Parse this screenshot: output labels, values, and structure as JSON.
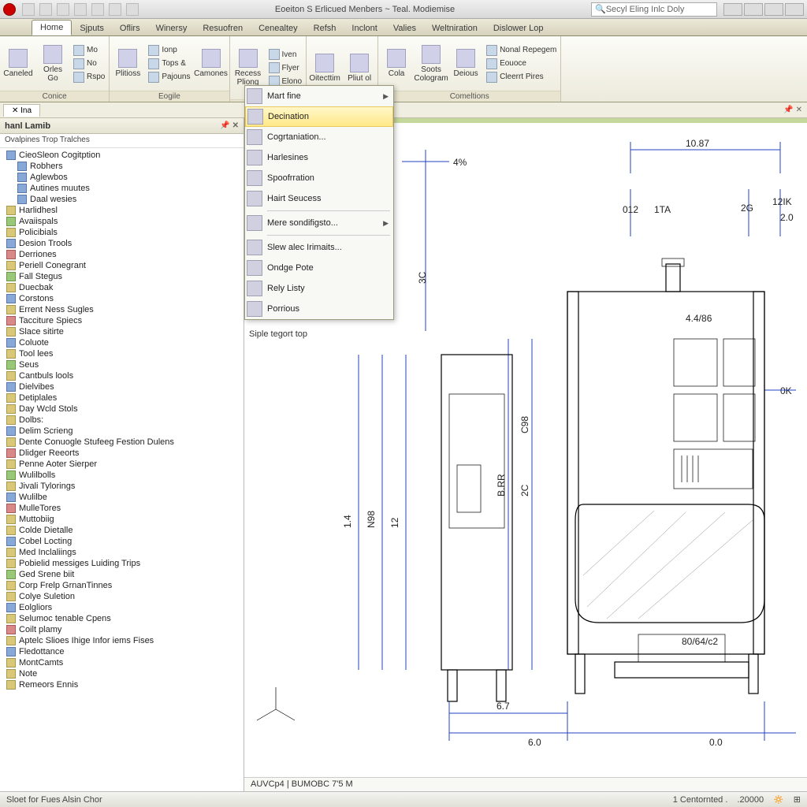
{
  "titlebar": {
    "doc_title": "Eoeiton S Erlicued Menbers ~ Teal. Modiemise",
    "search_placeholder": "Secyl Eling Inlc Doly"
  },
  "ribbon_tabs": [
    "Home",
    "Sjputs",
    "Oflirs",
    "Winersy",
    "Resuofren",
    "Cenealtey",
    "Refsh",
    "Inclont",
    "Valies",
    "Weltniration",
    "Dislower Lop"
  ],
  "ribbon_active": 0,
  "ribbon": {
    "panels": [
      {
        "label": "Conice",
        "big": [
          {
            "t": "Caneled"
          },
          {
            "t": "Orles Go"
          }
        ],
        "small": [
          [
            "Mo",
            "No",
            "Rspo"
          ]
        ]
      },
      {
        "label": "Eogile",
        "big": [
          {
            "t": "Plitioss"
          }
        ],
        "small": [
          [
            "Ionp",
            "Tops &",
            "Pajouns"
          ]
        ],
        "big2": [
          {
            "t": "Camones"
          }
        ]
      },
      {
        "label": "",
        "big": [
          {
            "t": "Recess Pliong"
          }
        ],
        "small": [
          [
            "Iven",
            "Flyer",
            "Elono"
          ]
        ]
      },
      {
        "label": "",
        "big": [
          {
            "t": "Oitecttim"
          },
          {
            "t": "Pliut ol"
          }
        ]
      },
      {
        "label": "Comeltions",
        "small": [
          [
            "Nonal Repegem",
            "Eouoce",
            "Cleerrt Pires"
          ]
        ],
        "big": [
          {
            "t": "Cola"
          },
          {
            "t": "Soots Cologram"
          },
          {
            "t": "Deious"
          }
        ]
      }
    ]
  },
  "dropdown": [
    {
      "t": "Mart fine",
      "arrow": true
    },
    {
      "t": "Decination",
      "hl": true
    },
    {
      "t": "Cogrtaniation..."
    },
    {
      "t": "Harlesines"
    },
    {
      "t": "Spoofrration"
    },
    {
      "t": "Hairt Seucess"
    },
    {
      "sep": true
    },
    {
      "t": "Mere sondifigsto...",
      "arrow": true
    },
    {
      "sep": true
    },
    {
      "t": "Slew alec Irimaits..."
    },
    {
      "t": "Ondge Pote"
    },
    {
      "t": "Rely Listy"
    },
    {
      "t": "Porrious"
    }
  ],
  "side": {
    "header": "hanl Lamib",
    "sub": "Ovalpines Trop Tralches",
    "items": [
      {
        "t": "CieoSleon Cogitption",
        "c": "b"
      },
      {
        "t": "Robhers",
        "ind": true,
        "c": "b"
      },
      {
        "t": "Aglewbos",
        "ind": true,
        "c": "b"
      },
      {
        "t": "Autines muutes",
        "ind": true,
        "c": "b"
      },
      {
        "t": "Daal wesies",
        "ind": true,
        "c": "b"
      },
      {
        "t": "Harlidhesl",
        "c": ""
      },
      {
        "t": "Avaiispals",
        "c": "g"
      },
      {
        "t": "Policibials",
        "c": ""
      },
      {
        "t": "Desion Trools",
        "c": "b"
      },
      {
        "t": "Derriones",
        "c": "r"
      },
      {
        "t": "Periell Conegrant",
        "c": ""
      },
      {
        "t": "Fall Stegus",
        "c": "g"
      },
      {
        "t": "Duecbak",
        "c": ""
      },
      {
        "t": "Corstons",
        "c": "b"
      },
      {
        "t": "Errent Ness Sugles",
        "c": ""
      },
      {
        "t": "Tacciture Spiecs",
        "c": "r"
      },
      {
        "t": "Slace sitirte",
        "c": ""
      },
      {
        "t": "Coluote",
        "c": "b"
      },
      {
        "t": "Tool lees",
        "c": ""
      },
      {
        "t": "Seus",
        "c": "g"
      },
      {
        "t": "Cantbuls lools",
        "c": ""
      },
      {
        "t": "Dielvibes",
        "c": "b"
      },
      {
        "t": "Detiplales",
        "c": ""
      },
      {
        "t": "Day Wcld Stols",
        "c": ""
      },
      {
        "t": "Dolbs:",
        "c": ""
      },
      {
        "t": "Delim Scrieng",
        "c": "b"
      },
      {
        "t": "Dente Conuogle Stufeeg Festion Dulens",
        "c": ""
      },
      {
        "t": "Dlidger Reeorts",
        "c": "r"
      },
      {
        "t": "Penne Aoter Sierper",
        "c": ""
      },
      {
        "t": "Wulilbolls",
        "c": "g"
      },
      {
        "t": "Jivali Tylorings",
        "c": ""
      },
      {
        "t": "Wulilbe",
        "c": "b"
      },
      {
        "t": "MulleTores",
        "c": "r"
      },
      {
        "t": "Muttobiig",
        "c": ""
      },
      {
        "t": "Colde Dietalle",
        "c": ""
      },
      {
        "t": "Cobel Locting",
        "c": "b"
      },
      {
        "t": "Med Inclaliings",
        "c": ""
      },
      {
        "t": "Pobielid messiges Luiding Trips",
        "c": ""
      },
      {
        "t": "Ged Srene biit",
        "c": "g"
      },
      {
        "t": "Corp Frelp GrnanTinnes",
        "c": ""
      },
      {
        "t": "Colye Suletion",
        "c": ""
      },
      {
        "t": "Eolgliors",
        "c": "b"
      },
      {
        "t": "Selumoc tenable Cpens",
        "c": ""
      },
      {
        "t": "Coilt plamy",
        "c": "r"
      },
      {
        "t": "Aptelc Slioes Ihige Infor iems Fises",
        "c": ""
      },
      {
        "t": "Fledottance",
        "c": "b"
      },
      {
        "t": "MontCamts",
        "c": ""
      },
      {
        "t": "Note",
        "c": ""
      },
      {
        "t": "Remeors Ennis",
        "c": ""
      }
    ]
  },
  "canvas": {
    "caption": "Siple tegort top",
    "bottom_text": "AUVCp4 | BUMOBC 7'5 M",
    "dims": {
      "top_w": "10.87",
      "pct": "4%",
      "v1": "N98",
      "v2": "1.4",
      "v3": "12",
      "v4": "B.RR",
      "v5": "2C",
      "v6": "C98",
      "v7": "3C",
      "r1": "012",
      "r2": "1TA",
      "r3": "2G",
      "r4": "12IK",
      "r5": "2.0",
      "r6": "0K",
      "b1": "6.7",
      "b2": "6.0",
      "b3": "0.0",
      "note1": "4.4/86",
      "note2": "80/64/c2"
    }
  },
  "status": {
    "left": "Sloet for Fues Alsin Chor",
    "mid": "1 Centornted .",
    "val": ".20000"
  },
  "colors": {
    "dim": "#2040c0"
  }
}
